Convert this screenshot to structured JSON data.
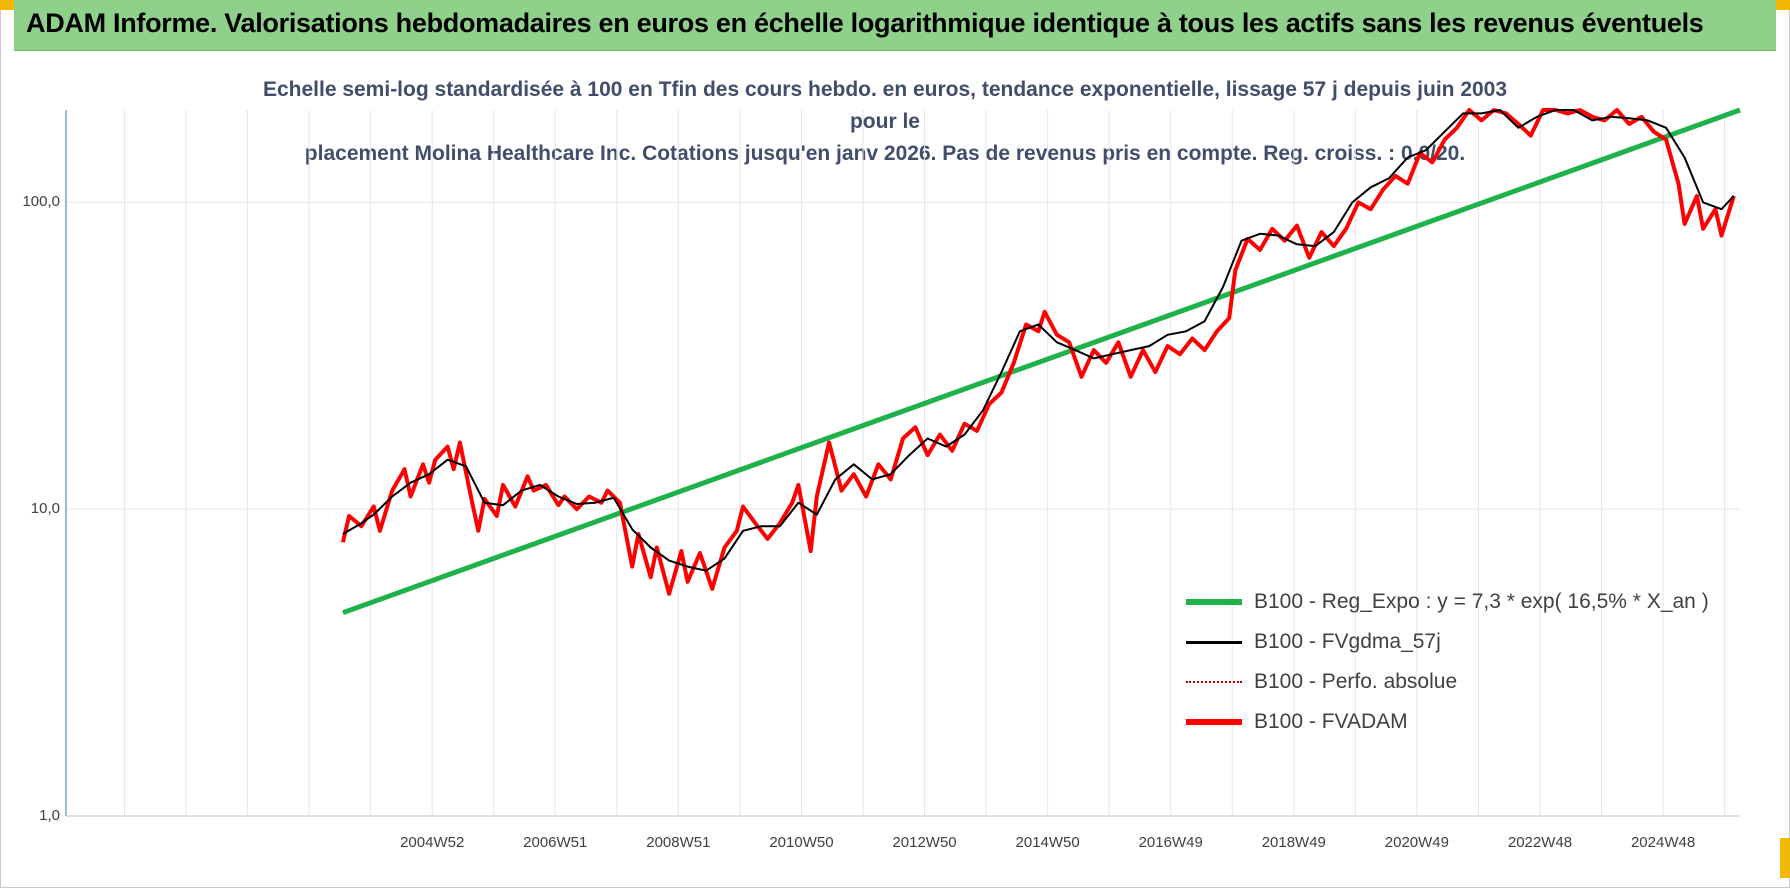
{
  "header": {
    "title": "ADAM Informe. Valorisations hebdomadaires en euros en échelle logarithmique identique à tous les actifs sans les revenus éventuels"
  },
  "chart_data": {
    "type": "line",
    "title": "",
    "subtitle_lines": [
      "Echelle semi-log standardisée à 100 en Tfin des cours hebdo. en euros, tendance exponentielle, lissage 57 j depuis juin 2003 pour le",
      "placement Molina Healthcare Inc. Cotations jusqu'en janv 2026. Pas de revenus pris en compte. Reg. croiss. : 0,0/20."
    ],
    "y_scale": "log",
    "ylim": [
      1,
      200
    ],
    "y_ticks": [
      1,
      10,
      100
    ],
    "y_tick_labels": [
      "1,0",
      "10,0",
      "100,0"
    ],
    "x_range": [
      1999.0,
      2026.2
    ],
    "x_ticks": [
      2004.95,
      2006.95,
      2008.95,
      2010.95,
      2012.95,
      2014.95,
      2016.95,
      2018.95,
      2020.95,
      2022.95,
      2024.95
    ],
    "x_tick_labels": [
      "2004W52",
      "2006W51",
      "2008W51",
      "2010W50",
      "2012W50",
      "2014W50",
      "2016W49",
      "2018W49",
      "2020W49",
      "2022W48",
      "2024W48"
    ],
    "grid": true,
    "legend_position": "bottom-right",
    "series": [
      {
        "name": "B100 - Reg_Expo : y = 7,3 * exp( 16,5% *  X_an )",
        "color": "#1fb24a",
        "style": "solid-thick",
        "x": [
          2003.5,
          2026.2
        ],
        "values": [
          4.6,
          200
        ]
      },
      {
        "name": "B100 - FVgdma_57j",
        "color": "#000000",
        "style": "solid-thin",
        "x": [
          2003.5,
          2003.8,
          2004.0,
          2004.3,
          2004.6,
          2004.9,
          2005.2,
          2005.5,
          2005.8,
          2006.1,
          2006.4,
          2006.7,
          2007.0,
          2007.3,
          2007.6,
          2007.9,
          2008.2,
          2008.5,
          2008.8,
          2009.1,
          2009.4,
          2009.7,
          2010.0,
          2010.3,
          2010.6,
          2010.9,
          2011.2,
          2011.5,
          2011.8,
          2012.1,
          2012.4,
          2012.7,
          2013.0,
          2013.3,
          2013.6,
          2013.9,
          2014.2,
          2014.5,
          2014.8,
          2015.1,
          2015.4,
          2015.7,
          2016.0,
          2016.3,
          2016.6,
          2016.9,
          2017.2,
          2017.5,
          2017.8,
          2018.1,
          2018.4,
          2018.7,
          2019.0,
          2019.3,
          2019.6,
          2019.9,
          2020.2,
          2020.5,
          2020.8,
          2021.1,
          2021.4,
          2021.7,
          2022.0,
          2022.3,
          2022.6,
          2022.9,
          2023.2,
          2023.5,
          2023.8,
          2024.1,
          2024.4,
          2024.7,
          2025.0,
          2025.3,
          2025.6,
          2025.9,
          2026.1
        ],
        "values": [
          8.3,
          9.0,
          9.6,
          11.0,
          12.2,
          13.0,
          14.5,
          13.8,
          10.5,
          10.3,
          11.5,
          12.0,
          11.0,
          10.4,
          10.5,
          10.9,
          8.6,
          7.5,
          6.8,
          6.5,
          6.3,
          6.9,
          8.5,
          8.8,
          8.8,
          10.5,
          9.6,
          12.5,
          14.0,
          12.5,
          13.0,
          15.0,
          17.0,
          16.0,
          17.5,
          21.0,
          28.0,
          38.0,
          40.0,
          35.0,
          33.0,
          31.0,
          32.0,
          33.0,
          34.0,
          37.0,
          38.0,
          41.0,
          53.0,
          75.0,
          79.0,
          78.0,
          73.0,
          72.0,
          80.0,
          100.0,
          112.0,
          120.0,
          140.0,
          148.0,
          170.0,
          195.0,
          195.0,
          205.0,
          175.0,
          190.0,
          205.0,
          210.0,
          185.0,
          190.0,
          188.0,
          185.0,
          175.0,
          140.0,
          100.0,
          95.0,
          105.0
        ]
      },
      {
        "name": "B100 - Perfo. absolue",
        "color": "#c00000",
        "style": "dotted",
        "x": [],
        "values": []
      },
      {
        "name": "B100 - FVADAM",
        "color": "#ff0000",
        "style": "solid-thick",
        "x": [
          2003.5,
          2003.6,
          2003.8,
          2004.0,
          2004.1,
          2004.3,
          2004.5,
          2004.6,
          2004.8,
          2004.9,
          2005.0,
          2005.2,
          2005.3,
          2005.4,
          2005.6,
          2005.7,
          2005.8,
          2006.0,
          2006.1,
          2006.3,
          2006.5,
          2006.6,
          2006.8,
          2007.0,
          2007.1,
          2007.3,
          2007.5,
          2007.7,
          2007.8,
          2008.0,
          2008.2,
          2008.3,
          2008.5,
          2008.6,
          2008.8,
          2009.0,
          2009.1,
          2009.3,
          2009.5,
          2009.7,
          2009.9,
          2010.0,
          2010.2,
          2010.4,
          2010.6,
          2010.8,
          2010.9,
          2011.1,
          2011.2,
          2011.4,
          2011.6,
          2011.8,
          2012.0,
          2012.2,
          2012.4,
          2012.6,
          2012.8,
          2013.0,
          2013.2,
          2013.4,
          2013.6,
          2013.8,
          2014.0,
          2014.2,
          2014.4,
          2014.6,
          2014.8,
          2014.9,
          2015.1,
          2015.3,
          2015.5,
          2015.7,
          2015.9,
          2016.1,
          2016.3,
          2016.5,
          2016.7,
          2016.9,
          2017.1,
          2017.3,
          2017.5,
          2017.7,
          2017.9,
          2018.0,
          2018.2,
          2018.4,
          2018.6,
          2018.8,
          2019.0,
          2019.2,
          2019.4,
          2019.6,
          2019.8,
          2020.0,
          2020.2,
          2020.4,
          2020.6,
          2020.8,
          2021.0,
          2021.2,
          2021.4,
          2021.6,
          2021.8,
          2022.0,
          2022.2,
          2022.4,
          2022.6,
          2022.8,
          2023.0,
          2023.2,
          2023.4,
          2023.6,
          2023.8,
          2024.0,
          2024.2,
          2024.4,
          2024.6,
          2024.8,
          2025.0,
          2025.2,
          2025.3,
          2025.5,
          2025.6,
          2025.8,
          2025.9,
          2026.1
        ],
        "values": [
          7.8,
          9.5,
          8.8,
          10.2,
          8.5,
          11.5,
          13.5,
          11.0,
          14.0,
          12.2,
          14.5,
          16.0,
          13.5,
          16.5,
          10.5,
          8.5,
          10.8,
          9.5,
          12.0,
          10.2,
          12.8,
          11.5,
          12.0,
          10.3,
          11.0,
          10.0,
          11.0,
          10.5,
          11.5,
          10.5,
          6.5,
          8.3,
          6.0,
          7.5,
          5.3,
          7.3,
          5.8,
          7.2,
          5.5,
          7.5,
          8.5,
          10.2,
          9.0,
          8.0,
          9.0,
          10.5,
          12.0,
          7.3,
          11.0,
          16.5,
          11.5,
          13.0,
          11.0,
          14.0,
          12.5,
          17.0,
          18.5,
          15.0,
          17.5,
          15.5,
          19.0,
          18.0,
          22.0,
          24.0,
          30.0,
          40.0,
          38.0,
          44.0,
          37.0,
          35.0,
          27.0,
          33.0,
          30.0,
          35.0,
          27.0,
          33.0,
          28.0,
          34.0,
          32.0,
          36.0,
          33.0,
          38.0,
          42.0,
          60.0,
          76.0,
          70.0,
          82.0,
          75.0,
          84.0,
          66.0,
          80.0,
          72.0,
          82.0,
          100.0,
          95.0,
          110.0,
          122.0,
          115.0,
          145.0,
          135.0,
          160.0,
          175.0,
          210.0,
          185.0,
          225.0,
          195.0,
          180.0,
          165.0,
          205.0,
          225.0,
          195.0,
          215.0,
          190.0,
          185.0,
          200.0,
          180.0,
          190.0,
          170.0,
          160.0,
          115.0,
          85.0,
          105.0,
          82.0,
          95.0,
          78.0,
          105.0
        ]
      }
    ]
  }
}
